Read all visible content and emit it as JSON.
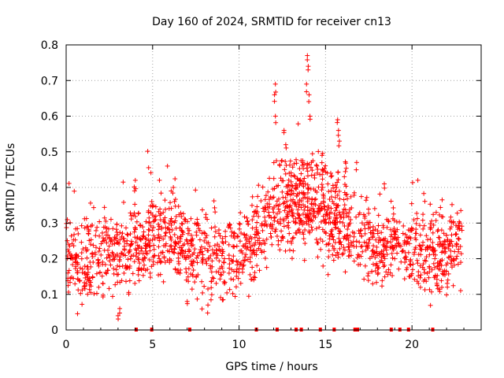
{
  "chart_data": {
    "type": "scatter",
    "title": "Day 160 of 2024, SRMTID for receiver cn13",
    "xlabel": "GPS time / hours",
    "ylabel": "SRMTID / TECUs",
    "xlim": [
      0,
      24
    ],
    "ylim": [
      0,
      0.8
    ],
    "xticks": [
      0,
      5,
      10,
      15,
      20
    ],
    "xtick_labels": [
      "0",
      "5",
      "10",
      "15",
      "20"
    ],
    "yticks": [
      0,
      0.1,
      0.2,
      0.3,
      0.4,
      0.5,
      0.6,
      0.7,
      0.8
    ],
    "ytick_labels": [
      "0",
      "0.1",
      "0.2",
      "0.3",
      "0.4",
      "0.5",
      "0.6",
      "0.7",
      "0.8"
    ],
    "grid": true,
    "marker": "plus",
    "color": "#ff0000",
    "series": [
      {
        "name": "SRMTID",
        "x_range": [
          0,
          22.9
        ],
        "trend": [
          [
            0.0,
            0.22
          ],
          [
            1.0,
            0.16
          ],
          [
            2.0,
            0.22
          ],
          [
            3.0,
            0.21
          ],
          [
            4.0,
            0.24
          ],
          [
            5.0,
            0.26
          ],
          [
            6.0,
            0.26
          ],
          [
            7.0,
            0.23
          ],
          [
            8.0,
            0.21
          ],
          [
            9.0,
            0.2
          ],
          [
            10.0,
            0.22
          ],
          [
            11.0,
            0.25
          ],
          [
            12.0,
            0.32
          ],
          [
            13.0,
            0.32
          ],
          [
            14.0,
            0.33
          ],
          [
            15.0,
            0.3
          ],
          [
            16.0,
            0.28
          ],
          [
            17.0,
            0.26
          ],
          [
            18.0,
            0.22
          ],
          [
            19.0,
            0.24
          ],
          [
            20.0,
            0.22
          ],
          [
            21.0,
            0.21
          ],
          [
            22.0,
            0.2
          ],
          [
            22.9,
            0.25
          ]
        ],
        "peaks": [
          [
            12.1,
            0.69
          ],
          [
            12.05,
            0.66
          ],
          [
            12.1,
            0.6
          ],
          [
            12.6,
            0.56
          ],
          [
            12.7,
            0.52
          ],
          [
            13.95,
            0.77
          ],
          [
            14.0,
            0.74
          ],
          [
            13.9,
            0.69
          ],
          [
            14.05,
            0.66
          ],
          [
            14.1,
            0.6
          ],
          [
            15.7,
            0.59
          ],
          [
            15.75,
            0.56
          ],
          [
            15.8,
            0.53
          ],
          [
            13.3,
            0.41
          ],
          [
            13.5,
            0.42
          ],
          [
            12.9,
            0.44
          ],
          [
            14.8,
            0.49
          ],
          [
            14.5,
            0.46
          ],
          [
            15.3,
            0.44
          ],
          [
            16.8,
            0.47
          ],
          [
            6.2,
            0.4
          ],
          [
            4.0,
            0.42
          ],
          [
            18.4,
            0.41
          ],
          [
            21.4,
            0.33
          ],
          [
            3.0,
            0.04
          ],
          [
            3.1,
            0.06
          ],
          [
            8.2,
            0.07
          ],
          [
            7.0,
            0.08
          ]
        ]
      }
    ],
    "gap_markers_x": [
      4.05,
      4.95,
      7.15,
      11.0,
      12.2,
      13.3,
      13.6,
      14.7,
      15.5,
      16.7,
      16.85,
      18.8,
      19.3,
      19.8,
      21.2
    ]
  }
}
